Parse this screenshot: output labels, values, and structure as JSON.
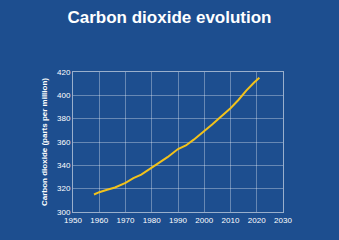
{
  "chart_data": {
    "type": "line",
    "title": "Carbon dioxide evolution",
    "y_label": "Carbon dioxide (parts per million)",
    "x": [
      1958,
      1960,
      1963,
      1966,
      1970,
      1973,
      1976,
      1980,
      1983,
      1986,
      1990,
      1993,
      1996,
      2000,
      2003,
      2006,
      2010,
      2013,
      2016,
      2019,
      2021
    ],
    "values": [
      315,
      317,
      319,
      321,
      325,
      329,
      332,
      338,
      342,
      347,
      354,
      357,
      362,
      369,
      375,
      381,
      389,
      396,
      404,
      411,
      415
    ],
    "color": "#f2c21b",
    "xlim": [
      1950,
      2030
    ],
    "xticks": [
      1950,
      1960,
      1970,
      1980,
      1990,
      2000,
      2010,
      2020,
      2030
    ],
    "ylim": [
      300,
      420
    ],
    "yticks": [
      300,
      320,
      340,
      360,
      380,
      400,
      420
    ],
    "grid": true
  }
}
